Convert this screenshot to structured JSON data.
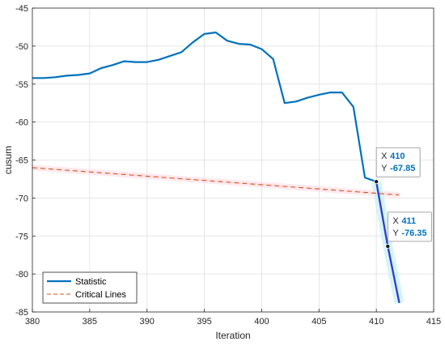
{
  "chart_data": {
    "type": "line",
    "xlabel": "Iteration",
    "ylabel": "cusum",
    "xlim": [
      380,
      415
    ],
    "ylim": [
      -85,
      -45
    ],
    "xticks": [
      "380",
      "385",
      "390",
      "395",
      "400",
      "405",
      "410",
      "415"
    ],
    "yticks": [
      "-45",
      "-50",
      "-55",
      "-60",
      "-65",
      "-70",
      "-75",
      "-80",
      "-85"
    ],
    "grid": true,
    "legend_position": "bottom-left",
    "series": [
      {
        "name": "Statistic",
        "color": "#0072BD",
        "style": "solid",
        "x": [
          380,
          381,
          382,
          383,
          384,
          385,
          386,
          387,
          388,
          389,
          390,
          391,
          392,
          393,
          394,
          395,
          396,
          397,
          398,
          399,
          400,
          401,
          402,
          403,
          404,
          405,
          406,
          407,
          408,
          409,
          410,
          411,
          412
        ],
        "values": [
          -54.2,
          -54.2,
          -54.1,
          -53.9,
          -53.8,
          -53.6,
          -52.9,
          -52.5,
          -52.0,
          -52.1,
          -52.1,
          -51.8,
          -51.3,
          -50.8,
          -49.5,
          -48.4,
          -48.2,
          -49.3,
          -49.7,
          -49.8,
          -50.4,
          -51.7,
          -57.5,
          -57.3,
          -56.8,
          -56.4,
          -56.1,
          -56.1,
          -58.0,
          -67.3,
          -67.85,
          -76.35,
          -83.8
        ]
      },
      {
        "name": "Critical Lines",
        "color": "#D95319",
        "style": "dashed",
        "x": [
          380,
          412
        ],
        "values": [
          -66.0,
          -69.6
        ]
      }
    ],
    "highlight": {
      "x": [
        410,
        411,
        412
      ],
      "values": [
        -67.85,
        -76.35,
        -83.8
      ],
      "color": "#3a3ad0"
    },
    "datatips": [
      {
        "x_label": "X",
        "x_value": "410",
        "y_label": "Y",
        "y_value": "-67.85",
        "x": 410,
        "y": -67.85,
        "anchor": "above"
      },
      {
        "x_label": "X",
        "x_value": "411",
        "y_label": "Y",
        "y_value": "-76.35",
        "x": 411,
        "y": -76.35,
        "anchor": "above"
      }
    ]
  }
}
